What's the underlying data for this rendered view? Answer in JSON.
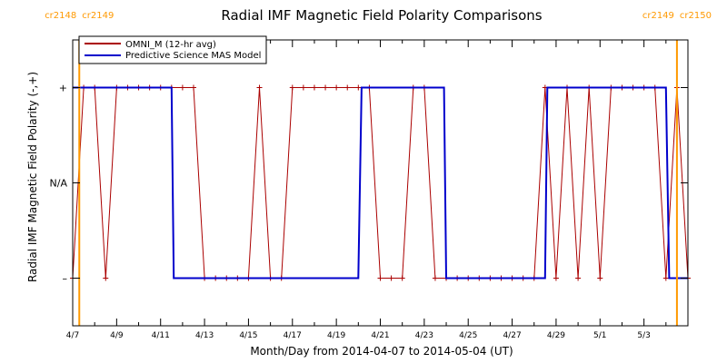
{
  "chart_data": {
    "type": "line",
    "title": "Radial IMF Magnetic Field Polarity Comparisons",
    "xlabel": "Month/Day from 2014-04-07 to 2014-05-04 (UT)",
    "ylabel": "Radial IMF Magnetic Field Polarity (-,+)",
    "x_unit": "days since 2014-04-07 00:00 UT",
    "xlim": [
      0,
      28
    ],
    "ylim": [
      -1.5,
      1.5
    ],
    "xtick_labels": [
      "4/7",
      "4/9",
      "4/11",
      "4/13",
      "4/15",
      "4/17",
      "4/19",
      "4/21",
      "4/23",
      "4/25",
      "4/27",
      "4/29",
      "5/1",
      "5/3"
    ],
    "xtick_values": [
      0,
      2,
      4,
      6,
      8,
      10,
      12,
      14,
      16,
      18,
      20,
      22,
      24,
      26
    ],
    "ytick_labels": [
      "+",
      "N/A",
      "–"
    ],
    "ytick_values": [
      1,
      0,
      -1
    ],
    "carrington_rotations": [
      {
        "x": 0.3,
        "left_label": "cr2148",
        "right_label": "cr2149",
        "color": "#ff9900"
      },
      {
        "x": 27.5,
        "left_label": "cr2149",
        "right_label": "cr2150",
        "color": "#ff9900"
      }
    ],
    "legend": {
      "placement": "top-left"
    },
    "series": [
      {
        "name": "OMNI_M (12-hr avg)",
        "color": "#aa0000",
        "markers": "plus",
        "x": [
          0,
          0.5,
          1,
          1.5,
          2,
          2.5,
          3,
          3.5,
          4,
          4.5,
          5,
          5.5,
          6,
          6.5,
          7,
          7.5,
          8,
          8.5,
          9,
          9.5,
          10,
          10.5,
          11,
          11.5,
          12,
          12.5,
          13,
          13.5,
          14,
          14.5,
          15,
          15.5,
          16,
          16.5,
          17,
          17.5,
          18,
          18.5,
          19,
          19.5,
          20,
          20.5,
          21,
          21.5,
          22,
          22.5,
          23,
          23.5,
          24,
          24.5,
          25,
          25.5,
          26,
          26.5,
          27,
          27.5,
          28
        ],
        "y": [
          -1,
          1,
          1,
          -1,
          1,
          1,
          1,
          1,
          1,
          1,
          1,
          1,
          -1,
          -1,
          -1,
          -1,
          -1,
          1,
          -1,
          -1,
          1,
          1,
          1,
          1,
          1,
          1,
          1,
          1,
          -1,
          -1,
          -1,
          1,
          1,
          -1,
          -1,
          -1,
          -1,
          -1,
          -1,
          -1,
          -1,
          -1,
          -1,
          1,
          -1,
          1,
          -1,
          1,
          -1,
          1,
          1,
          1,
          1,
          1,
          -1,
          1,
          -1
        ]
      },
      {
        "name": "Predictive Science MAS Model",
        "color": "#0000cc",
        "x": [
          0,
          4.5,
          4.6,
          13.0,
          13.15,
          16.9,
          17.0,
          21.5,
          21.6,
          27.0,
          27.15,
          28
        ],
        "y": [
          1,
          1,
          -1,
          -1,
          1,
          1,
          -1,
          -1,
          1,
          1,
          -1,
          -1
        ]
      }
    ]
  }
}
